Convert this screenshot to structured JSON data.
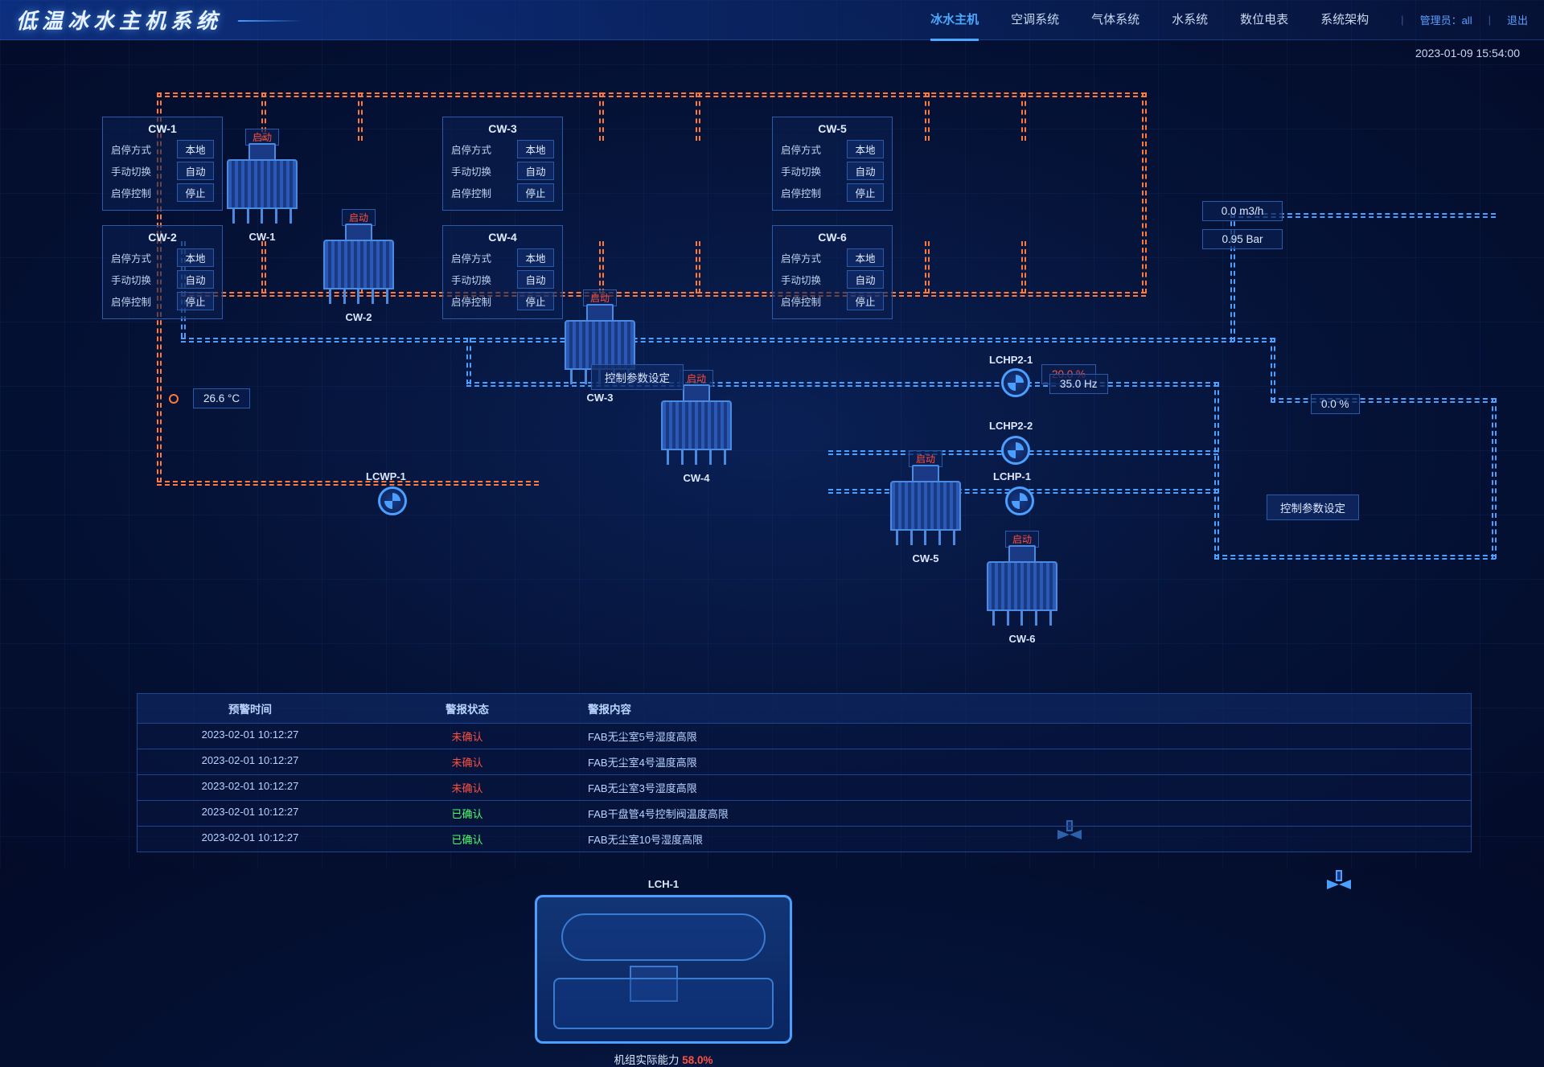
{
  "header": {
    "title": "低温冰水主机系统",
    "nav": [
      "冰水主机",
      "空调系统",
      "气体系统",
      "水系统",
      "数位电表",
      "系统架构"
    ],
    "active_nav": 0,
    "admin_label": "管理员：",
    "admin_value": "all",
    "logout": "退出",
    "datetime": "2023-01-09  15:54:00"
  },
  "panel_labels": {
    "mode": "启停方式",
    "switch": "手动切换",
    "ctrl": "启停控制"
  },
  "panel_values": {
    "mode": "本地",
    "switch": "自动",
    "ctrl": "停止"
  },
  "towers": [
    {
      "id": "CW-1",
      "tag": "启动"
    },
    {
      "id": "CW-2",
      "tag": "启动"
    },
    {
      "id": "CW-3",
      "tag": "启动"
    },
    {
      "id": "CW-4",
      "tag": "启动"
    },
    {
      "id": "CW-5",
      "tag": "启动"
    },
    {
      "id": "CW-6",
      "tag": "启动"
    }
  ],
  "panels": [
    "CW-1",
    "CW-2",
    "CW-3",
    "CW-4",
    "CW-5",
    "CW-6"
  ],
  "readings": {
    "flow": "0.0  m3/h",
    "pressure": "0.95  Bar",
    "temp": "26.6  °C",
    "valve_pct": "20.0   %",
    "hz": "35.0   Hz",
    "pct2": "0.0   %"
  },
  "buttons": {
    "param": "控制参数设定",
    "param2": "控制参数设定"
  },
  "chiller": {
    "id": "LCH-1",
    "cap_label": "机组实际能力",
    "cap_pct": "58.0%"
  },
  "pumps": {
    "lcwp1": "LCWP-1",
    "lchp1": "LCHP-1",
    "lchp21": "LCHP2-1",
    "lchp22": "LCHP2-2"
  },
  "alarms": {
    "cols": [
      "预警时间",
      "警报状态",
      "警报内容"
    ],
    "rows": [
      {
        "t": "2023-02-01   10:12:27",
        "s": "未确认",
        "c": "FAB无尘室5号湿度高限",
        "type": "un"
      },
      {
        "t": "2023-02-01   10:12:27",
        "s": "未确认",
        "c": "FAB无尘室4号温度高限",
        "type": "un"
      },
      {
        "t": "2023-02-01   10:12:27",
        "s": "未确认",
        "c": "FAB无尘室3号湿度高限",
        "type": "un"
      },
      {
        "t": "2023-02-01   10:12:27",
        "s": "已确认",
        "c": "FAB干盘管4号控制阀温度高限",
        "type": "ok"
      },
      {
        "t": "2023-02-01   10:12:27",
        "s": "已确认",
        "c": "FAB无尘室10号湿度高限",
        "type": "ok"
      }
    ]
  },
  "colors": {
    "bg_inner": "#0a2055",
    "bg_outer": "#030b28",
    "pipe_blue": "#4a9fff",
    "pipe_orange": "#ff7a3a",
    "accent": "#4aa8ff",
    "red": "#ff5040",
    "green": "#4aff6a",
    "panel_border": "#2a5aaa"
  }
}
